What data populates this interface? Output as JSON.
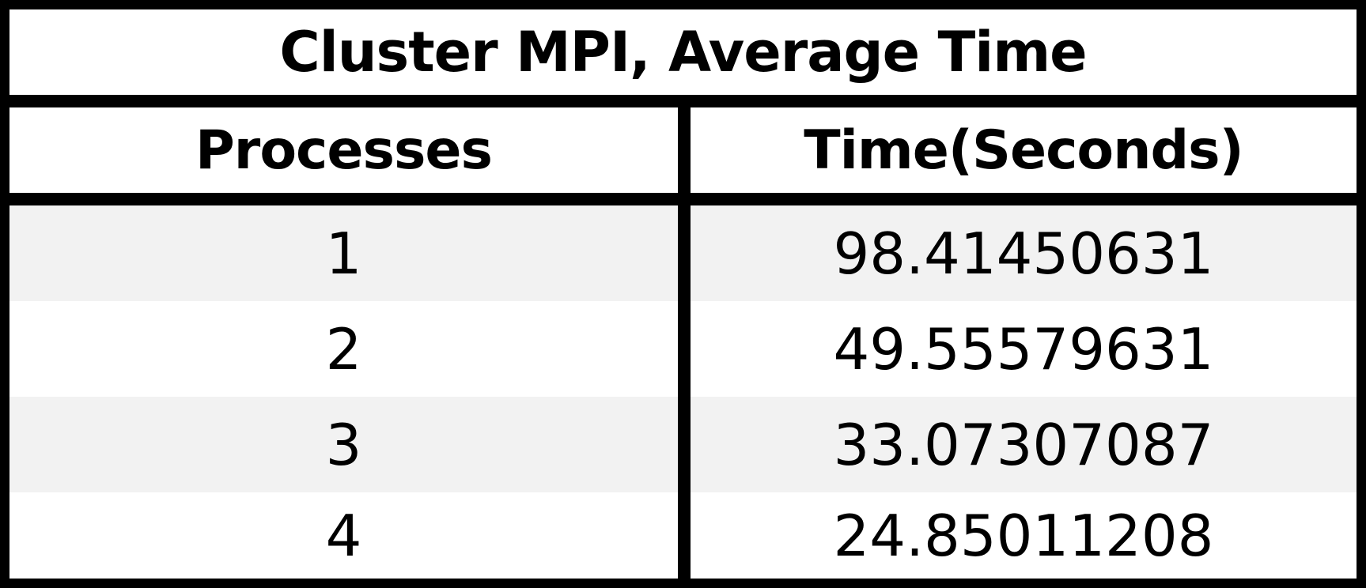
{
  "chart_data": {
    "type": "table",
    "title": "Cluster MPI, Average Time",
    "columns": [
      "Processes",
      "Time(Seconds)"
    ],
    "rows": [
      [
        "1",
        "98.41450631"
      ],
      [
        "2",
        "49.55579631"
      ],
      [
        "3",
        "33.07307087"
      ],
      [
        "4",
        "24.85011208"
      ]
    ]
  },
  "colors": {
    "border": "#000000",
    "stripe": "#f2f2f2",
    "background": "#ffffff"
  }
}
